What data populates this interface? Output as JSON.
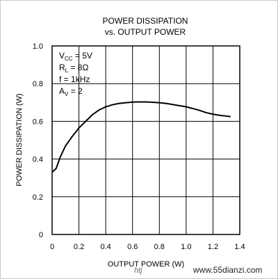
{
  "chart_data": {
    "type": "line",
    "title": "POWER DISSIPATION",
    "subtitle": "vs. OUTPUT POWER",
    "xlabel": "OUTPUT POWER (W)",
    "ylabel": "POWER DISSIPATION (W)",
    "xlim": [
      0,
      1.4
    ],
    "ylim": [
      0,
      1.0
    ],
    "x_ticks": [
      "0",
      "0.2",
      "0.4",
      "0.6",
      "0.8",
      "1.0",
      "1.2",
      "1.4"
    ],
    "y_ticks": [
      "0",
      "0.2",
      "0.4",
      "0.6",
      "0.8",
      "1.0"
    ],
    "grid": true,
    "legend": "none",
    "series": [
      {
        "x": [
          0.0,
          0.03,
          0.06,
          0.1,
          0.15,
          0.2,
          0.25,
          0.3,
          0.35,
          0.4,
          0.45,
          0.5,
          0.55,
          0.6,
          0.65,
          0.7,
          0.75,
          0.8,
          0.85,
          0.9,
          0.95,
          1.0,
          1.05,
          1.1,
          1.15,
          1.2,
          1.25,
          1.3,
          1.33
        ],
        "y": [
          0.33,
          0.35,
          0.41,
          0.47,
          0.52,
          0.565,
          0.6,
          0.635,
          0.66,
          0.677,
          0.688,
          0.695,
          0.699,
          0.702,
          0.703,
          0.703,
          0.701,
          0.699,
          0.695,
          0.689,
          0.683,
          0.677,
          0.668,
          0.658,
          0.646,
          0.638,
          0.632,
          0.628,
          0.625
        ]
      }
    ],
    "conditions": [
      {
        "main": "V",
        "sub": "CC",
        "rest": " = 5V"
      },
      {
        "main": "R",
        "sub": "L",
        "rest": " = 8Ω"
      },
      {
        "main": "f",
        "sub": "",
        "rest": " = 1kHz"
      },
      {
        "main": "A",
        "sub": "V",
        "rest": " = 2"
      }
    ]
  },
  "watermark": {
    "text": "www.55dianzi.com"
  },
  "colors": {
    "curve": "#000000",
    "grid": "#000000",
    "border": "#c8c8c8"
  }
}
